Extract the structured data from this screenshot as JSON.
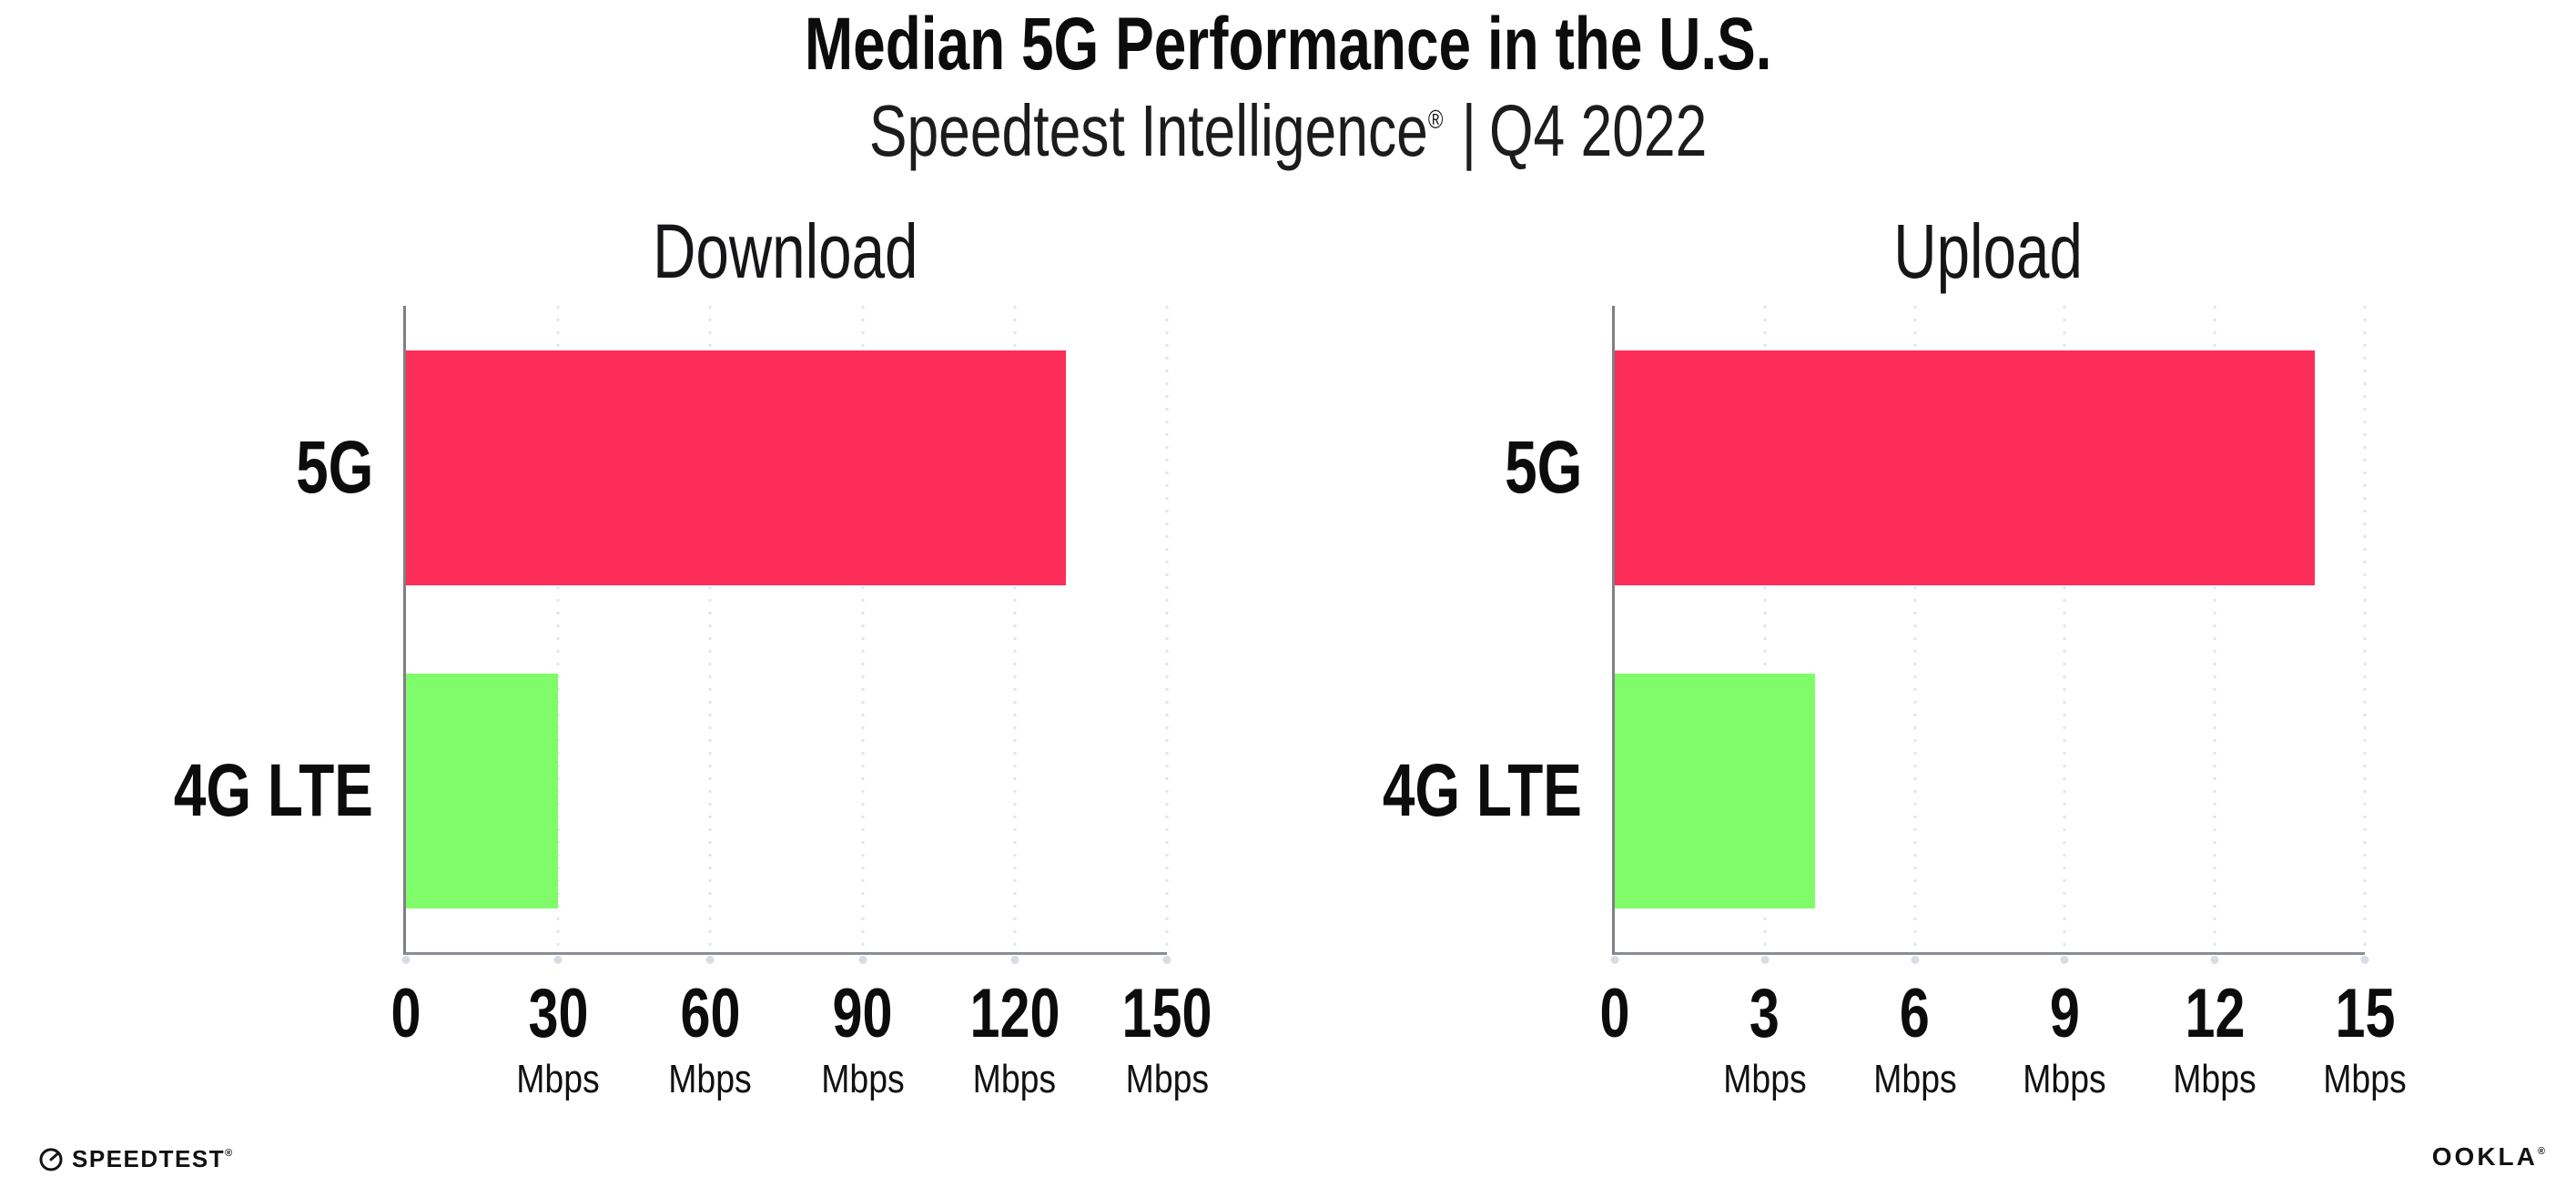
{
  "header": {
    "title": "Median 5G Performance in the U.S.",
    "subtitle": {
      "brand": "Speedtest Intelligence",
      "reg": "®",
      "separator": "|",
      "period": "Q4 2022"
    }
  },
  "footer": {
    "speedtest": {
      "label": "SPEEDTEST",
      "reg": "®"
    },
    "ookla": {
      "label": "OOKLA",
      "reg": "®"
    }
  },
  "chart_data": {
    "type": "bar",
    "orientation": "horizontal",
    "title": "Median 5G Performance in the U.S.",
    "subtitle": "Speedtest Intelligence® | Q4 2022",
    "unit": "Mbps",
    "categories": [
      "5G",
      "4G LTE"
    ],
    "bar_colors": [
      "#FC2D58",
      "#80FB69"
    ],
    "grid": "vertical-dotted",
    "legend": "none",
    "charts": [
      {
        "title": "Download",
        "values": [
          130,
          30
        ],
        "xlim": [
          0,
          150
        ],
        "xticks": [
          0,
          30,
          60,
          90,
          120,
          150
        ]
      },
      {
        "title": "Upload",
        "values": [
          14,
          4
        ],
        "xlim": [
          0,
          15
        ],
        "xticks": [
          0,
          3,
          6,
          9,
          12,
          15
        ]
      }
    ]
  }
}
